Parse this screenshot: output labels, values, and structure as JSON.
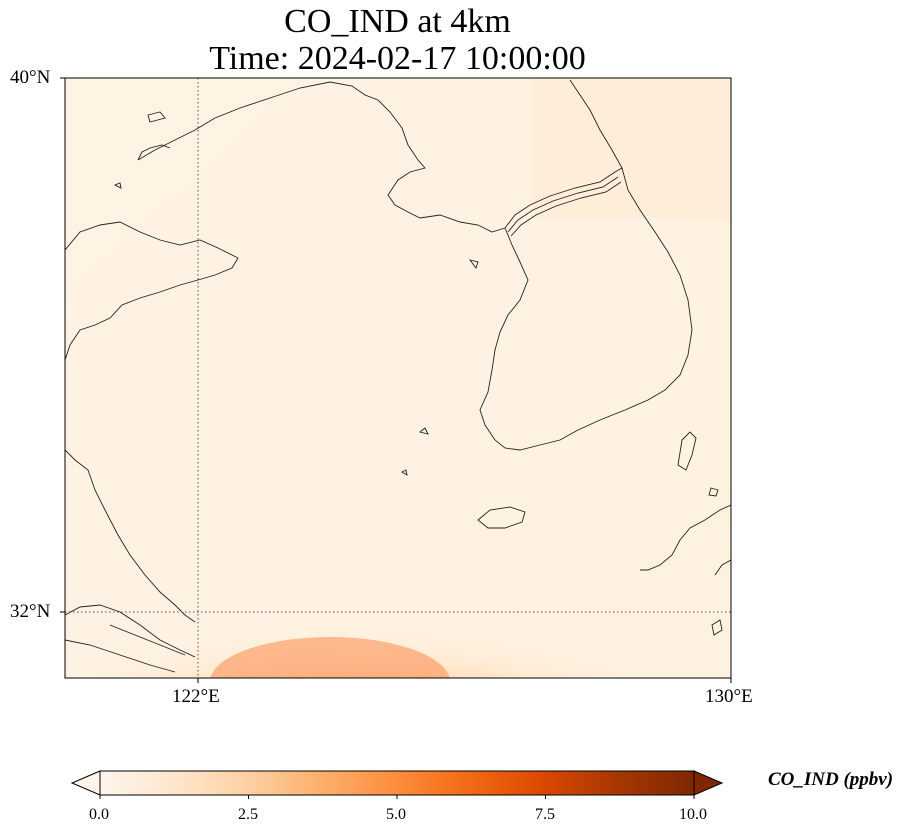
{
  "map": {
    "title_line1": "CO_IND at 4km",
    "title_line2": "Time: 2024-02-17 10:00:00",
    "lat_ticks": [
      "40°N",
      "32°N"
    ],
    "lon_ticks": [
      "122°E",
      "130°E"
    ],
    "extent": {
      "lon_min": 120,
      "lon_max": 130,
      "lat_min": 31,
      "lat_max": 40
    },
    "gridlines": {
      "lons": [
        122
      ],
      "lats": [
        32
      ],
      "style": "dotted"
    },
    "field": {
      "variable": "CO_IND",
      "units": "ppbv",
      "max_value_shown": 3.5,
      "high_region": "southern edge, lon 122–128"
    },
    "colorbar": {
      "label": "CO_IND (ppbv)",
      "min": 0.0,
      "max": 10.0,
      "tick_labels": [
        "0.0",
        "2.5",
        "5.0",
        "7.5",
        "10.0"
      ],
      "colormap": [
        "#fff5eb",
        "#fee6ce",
        "#fdd0a2",
        "#fdae6b",
        "#fd8d3c",
        "#f16913",
        "#d94801",
        "#a63603",
        "#7f2704"
      ],
      "extend": "both"
    }
  }
}
